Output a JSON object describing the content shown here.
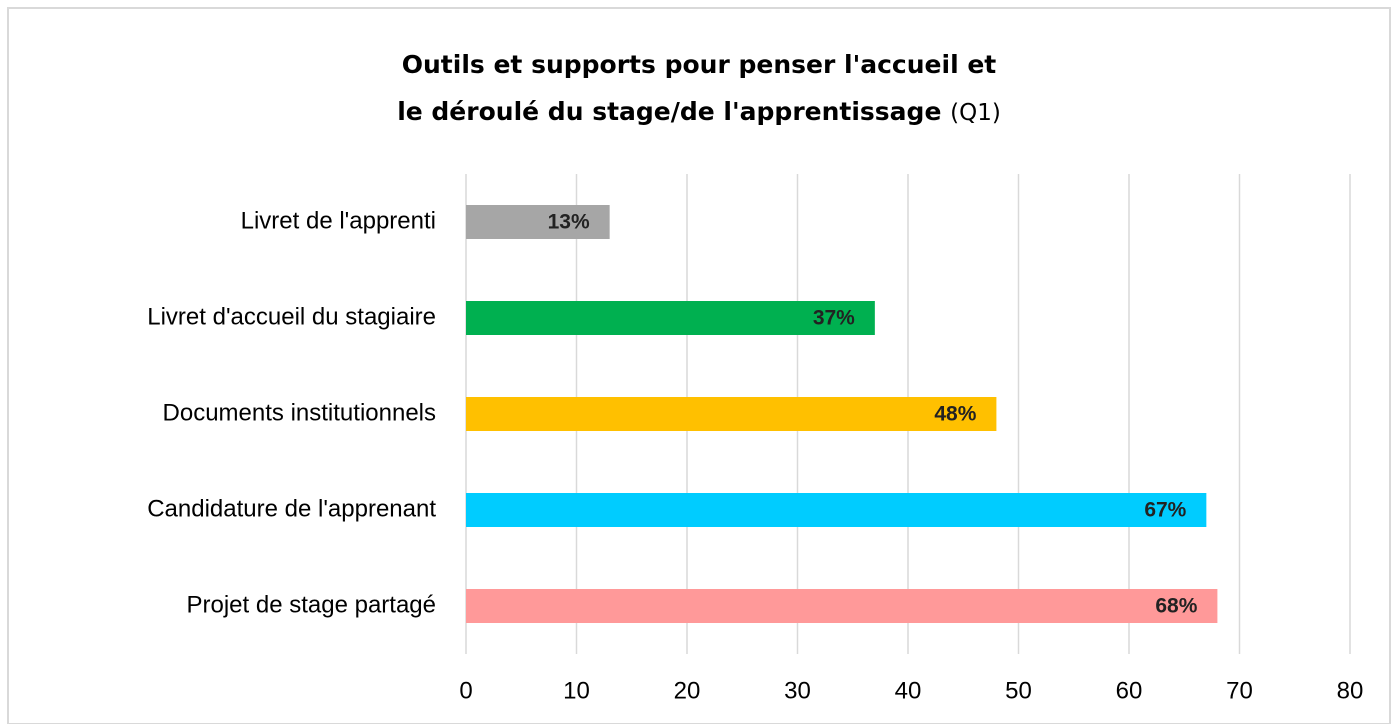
{
  "chart_data": {
    "type": "bar",
    "orientation": "horizontal",
    "title": [
      "Outils et supports pour penser l'accueil et",
      "le déroulé du stage/de l'apprentissage"
    ],
    "subtitle": "(Q1)",
    "categories": [
      "Livret de l'apprenti",
      "Livret d'accueil du stagiaire",
      "Documents institutionnels",
      "Candidature de l'apprenant",
      "Projet de stage partagé"
    ],
    "values": [
      13,
      37,
      48,
      67,
      68
    ],
    "value_labels": [
      "13%",
      "37%",
      "48%",
      "67%",
      "68%"
    ],
    "colors": [
      "#a6a6a6",
      "#00b050",
      "#ffc000",
      "#00ccff",
      "#ff9999"
    ],
    "xlim": [
      0,
      80
    ],
    "xticks": [
      0,
      10,
      20,
      30,
      40,
      50,
      60,
      70,
      80
    ],
    "grid": true
  }
}
